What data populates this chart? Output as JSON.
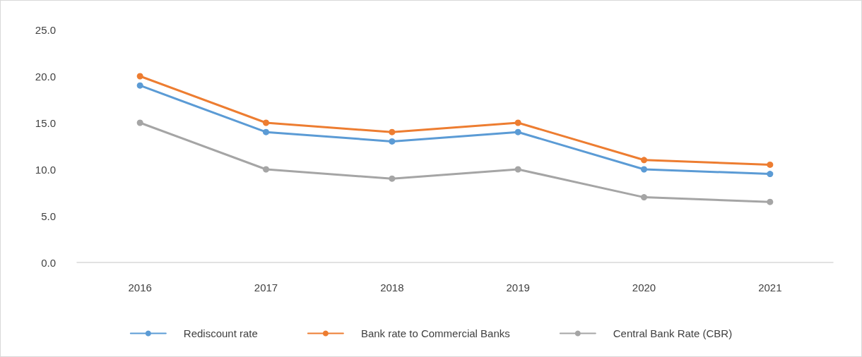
{
  "chart_data": {
    "type": "line",
    "categories": [
      "2016",
      "2017",
      "2018",
      "2019",
      "2020",
      "2021"
    ],
    "series": [
      {
        "name": "Rediscount rate",
        "color": "#5b9bd5",
        "values": [
          19,
          14,
          13,
          14,
          10,
          9.5
        ]
      },
      {
        "name": "Bank rate to Commercial Banks",
        "color": "#ed7d31",
        "values": [
          20,
          15,
          14,
          15,
          11,
          10.5
        ]
      },
      {
        "name": "Central Bank Rate (CBR)",
        "color": "#a5a5a5",
        "values": [
          15,
          10,
          9,
          10,
          7,
          6.5
        ]
      }
    ],
    "ylim": [
      0,
      25
    ],
    "yticks": [
      {
        "value": 0,
        "label": "0.0"
      },
      {
        "value": 5,
        "label": "5.0"
      },
      {
        "value": 10,
        "label": "10.0"
      },
      {
        "value": 15,
        "label": "15.0"
      },
      {
        "value": 20,
        "label": "20.0"
      },
      {
        "value": 25,
        "label": "25.0"
      }
    ],
    "grid": false,
    "legend": "bottom",
    "marker": "circle",
    "line_style": "solid"
  }
}
